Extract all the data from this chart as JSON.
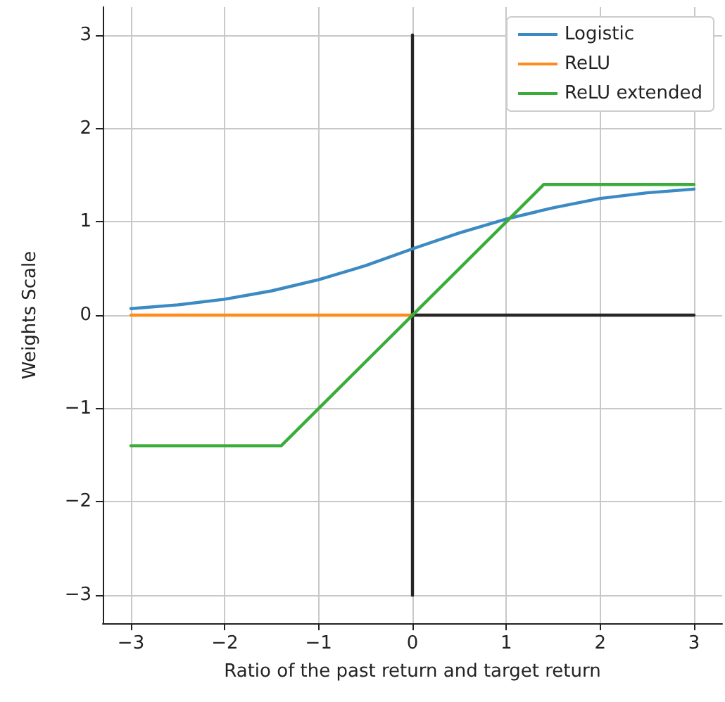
{
  "chart_data": {
    "type": "line",
    "xlabel": "Ratio of the past return and target return",
    "ylabel": "Weights Scale",
    "xlim": [
      -3.3,
      3.3
    ],
    "ylim": [
      -3.3,
      3.3
    ],
    "xticks": [
      {
        "value": -3,
        "label": "−3"
      },
      {
        "value": -2,
        "label": "−2"
      },
      {
        "value": -1,
        "label": "−1"
      },
      0,
      1,
      2,
      3
    ],
    "yticks": [
      {
        "value": -3,
        "label": "−3"
      },
      {
        "value": -2,
        "label": "−2"
      },
      {
        "value": -1,
        "label": "−1"
      },
      0,
      1,
      2,
      3
    ],
    "grid": true,
    "legend": "top right",
    "marker": "none",
    "line_style": "solid",
    "series": [
      {
        "color": "#262626",
        "x": [
          0,
          0
        ],
        "values": [
          -3,
          3
        ]
      },
      {
        "color": "#262626",
        "x": [
          0,
          3
        ],
        "values": [
          0,
          0
        ]
      },
      {
        "name": "Logistic",
        "color": "#3c8ac4",
        "x": [
          -3,
          -2.5,
          -2,
          -1.5,
          -1,
          -0.5,
          0,
          0.5,
          1,
          1.5,
          2,
          2.5,
          3
        ],
        "values": [
          0.07,
          0.11,
          0.17,
          0.26,
          0.38,
          0.53,
          0.71,
          0.88,
          1.03,
          1.15,
          1.25,
          1.31,
          1.35
        ]
      },
      {
        "name": "ReLU",
        "color": "#ff8c1a",
        "x": [
          -3,
          0
        ],
        "values": [
          0,
          0
        ]
      },
      {
        "name": "ReLU extended",
        "color": "#3aac3a",
        "x": [
          -3,
          -1.4,
          1.4,
          3
        ],
        "values": [
          -1.4,
          -1.4,
          1.4,
          1.4
        ]
      }
    ]
  }
}
